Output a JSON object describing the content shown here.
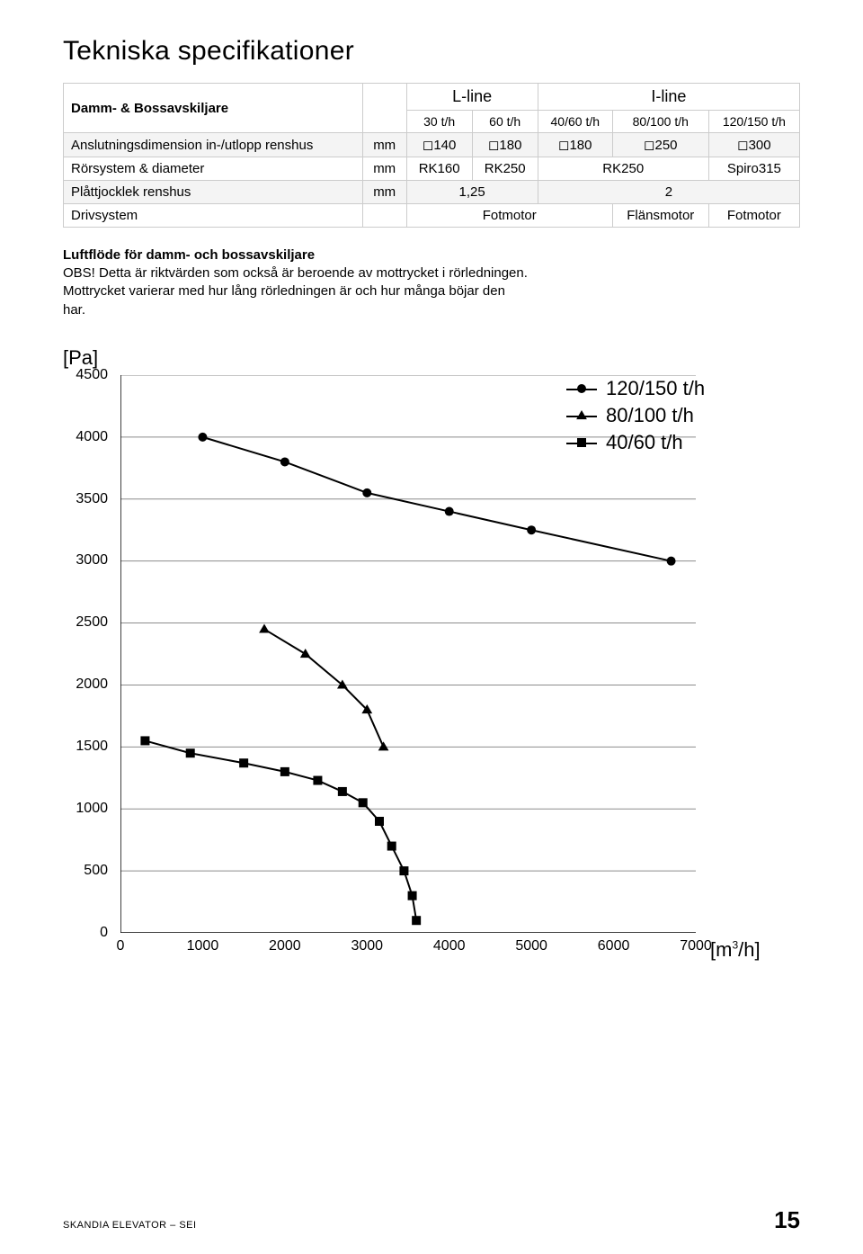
{
  "title": "Tekniska specifikationer",
  "table": {
    "rowhead": "Damm- & Bossavskiljare",
    "group_l": "L-line",
    "group_i": "I-line",
    "sub_cols": [
      "30 t/h",
      "60 t/h",
      "40/60 t/h",
      "80/100 t/h",
      "120/150 t/h"
    ],
    "rows": [
      {
        "label": "Anslutningsdimension in-/utlopp renshus",
        "unit": "mm",
        "cells": [
          "◻140",
          "◻180",
          "◻180",
          "◻250",
          "◻300"
        ],
        "spans": [
          1,
          1,
          1,
          1,
          1
        ]
      },
      {
        "label": "Rörsystem & diameter",
        "unit": "mm",
        "cells": [
          "RK160",
          "RK250",
          "RK250",
          "Spiro315"
        ],
        "spans": [
          1,
          1,
          2,
          1
        ]
      },
      {
        "label": "Plåttjocklek renshus",
        "unit": "mm",
        "cells": [
          "1,25",
          "2"
        ],
        "spans": [
          2,
          3
        ]
      },
      {
        "label": "Drivsystem",
        "unit": "",
        "cells": [
          "Fotmotor",
          "Flänsmotor",
          "Fotmotor"
        ],
        "spans": [
          3,
          1,
          1
        ]
      }
    ]
  },
  "subsection_title": "Luftflöde för damm- och bossavskiljare",
  "note": "OBS! Detta är riktvärden som också är beroende av mottrycket i rörledningen. Mottrycket varierar med hur lång rörledningen är och hur många böjar den har.",
  "chart": {
    "y_label": "[Pa]",
    "x_label_html": "[m³/h]",
    "xlim": [
      0,
      7000
    ],
    "ylim": [
      0,
      4500
    ],
    "x_ticks": [
      0,
      1000,
      2000,
      3000,
      4000,
      5000,
      6000,
      7000
    ],
    "y_ticks": [
      4500,
      4000,
      3500,
      3000,
      2500,
      2000,
      1500,
      1000,
      500,
      0
    ],
    "grid_color": "#8c8c8c",
    "axis_color": "#000000",
    "line_color": "#000000",
    "line_width": 2,
    "marker_size": 10,
    "series": [
      {
        "name": "120/150 t/h",
        "marker": "circle",
        "points": [
          [
            1000,
            4000
          ],
          [
            2000,
            3800
          ],
          [
            3000,
            3550
          ],
          [
            4000,
            3400
          ],
          [
            5000,
            3250
          ],
          [
            6700,
            3000
          ]
        ]
      },
      {
        "name": "80/100 t/h",
        "marker": "triangle",
        "points": [
          [
            1750,
            2450
          ],
          [
            2250,
            2250
          ],
          [
            2700,
            2000
          ],
          [
            3000,
            1800
          ],
          [
            3200,
            1500
          ]
        ]
      },
      {
        "name": "40/60 t/h",
        "marker": "square",
        "points": [
          [
            300,
            1550
          ],
          [
            850,
            1450
          ],
          [
            1500,
            1370
          ],
          [
            2000,
            1300
          ],
          [
            2400,
            1230
          ],
          [
            2700,
            1140
          ],
          [
            2950,
            1050
          ],
          [
            3150,
            900
          ],
          [
            3300,
            700
          ],
          [
            3450,
            500
          ],
          [
            3550,
            300
          ],
          [
            3600,
            100
          ]
        ]
      }
    ],
    "legend": [
      "120/150 t/h",
      "80/100 t/h",
      "40/60 t/h"
    ]
  },
  "footer": {
    "left": "SKANDIA ELEVATOR – SEI",
    "page": "15"
  }
}
